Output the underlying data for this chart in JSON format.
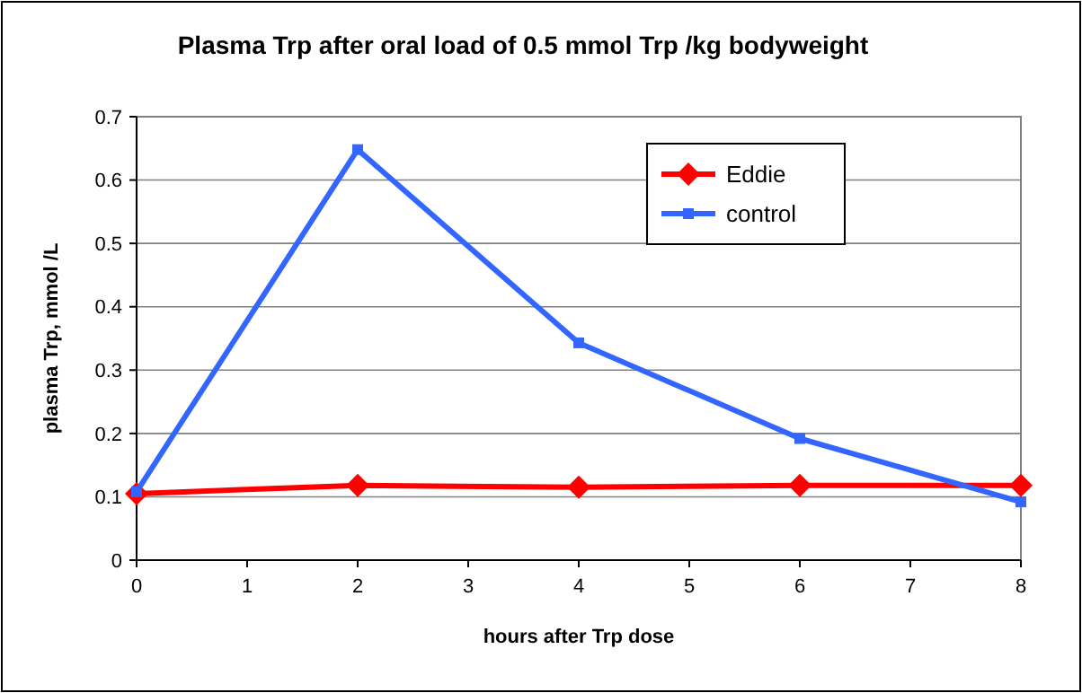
{
  "chart_data": {
    "type": "line",
    "title": "Plasma Trp after oral load of 0.5 mmol Trp /kg bodyweight",
    "xlabel": "hours after Trp dose",
    "ylabel": "plasma Trp, mmol /L",
    "x": [
      0,
      2,
      4,
      6,
      8
    ],
    "xlim": [
      0,
      8
    ],
    "xticks": [
      0,
      1,
      2,
      3,
      4,
      5,
      6,
      7,
      8
    ],
    "ylim": [
      0,
      0.7
    ],
    "yticks": [
      0,
      0.1,
      0.2,
      0.3,
      0.4,
      0.5,
      0.6,
      0.7
    ],
    "grid": "y",
    "legend": "top right",
    "series": [
      {
        "name": "Eddie",
        "color": "#ff0000",
        "marker": "diamond",
        "values": [
          0.105,
          0.118,
          0.115,
          0.118,
          0.118
        ]
      },
      {
        "name": "control",
        "color": "#3366ff",
        "marker": "square",
        "values": [
          0.108,
          0.648,
          0.343,
          0.192,
          0.092
        ]
      }
    ]
  }
}
